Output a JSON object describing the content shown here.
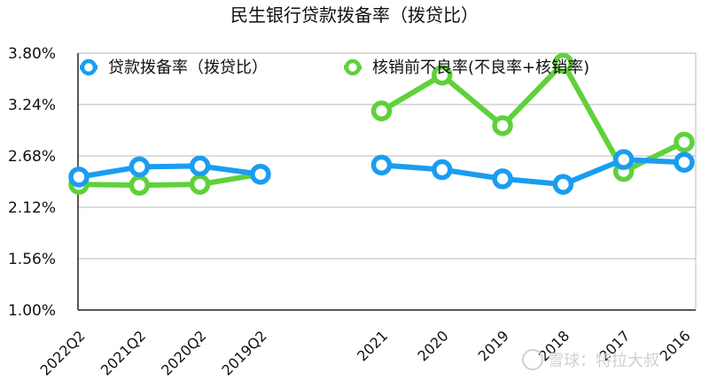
{
  "chart_data": {
    "type": "line",
    "title": "民生银行贷款拨备率（拨贷比）",
    "categories": [
      "2022Q2",
      "2021Q2",
      "2020Q2",
      "2019Q2",
      "",
      "2021",
      "2020",
      "2019",
      "2018",
      "2017",
      "2016"
    ],
    "ylim": [
      1.0,
      3.8
    ],
    "yticks": [
      "1.00%",
      "1.56%",
      "2.12%",
      "2.68%",
      "3.24%",
      "3.80%"
    ],
    "grid": true,
    "legend_position": "top",
    "series": [
      {
        "name": "贷款拨备率（拨贷比）",
        "color": "#1a9df0",
        "values": [
          2.45,
          2.56,
          2.57,
          2.48,
          null,
          2.58,
          2.53,
          2.43,
          2.37,
          2.64,
          2.61
        ]
      },
      {
        "name": "核销前不良率(不良率+核销率)",
        "color": "#5fd13a",
        "values": [
          2.37,
          2.36,
          2.37,
          2.48,
          null,
          3.17,
          3.56,
          3.01,
          3.69,
          2.51,
          2.83
        ]
      }
    ]
  },
  "watermark": "雪球：特拉大叔"
}
